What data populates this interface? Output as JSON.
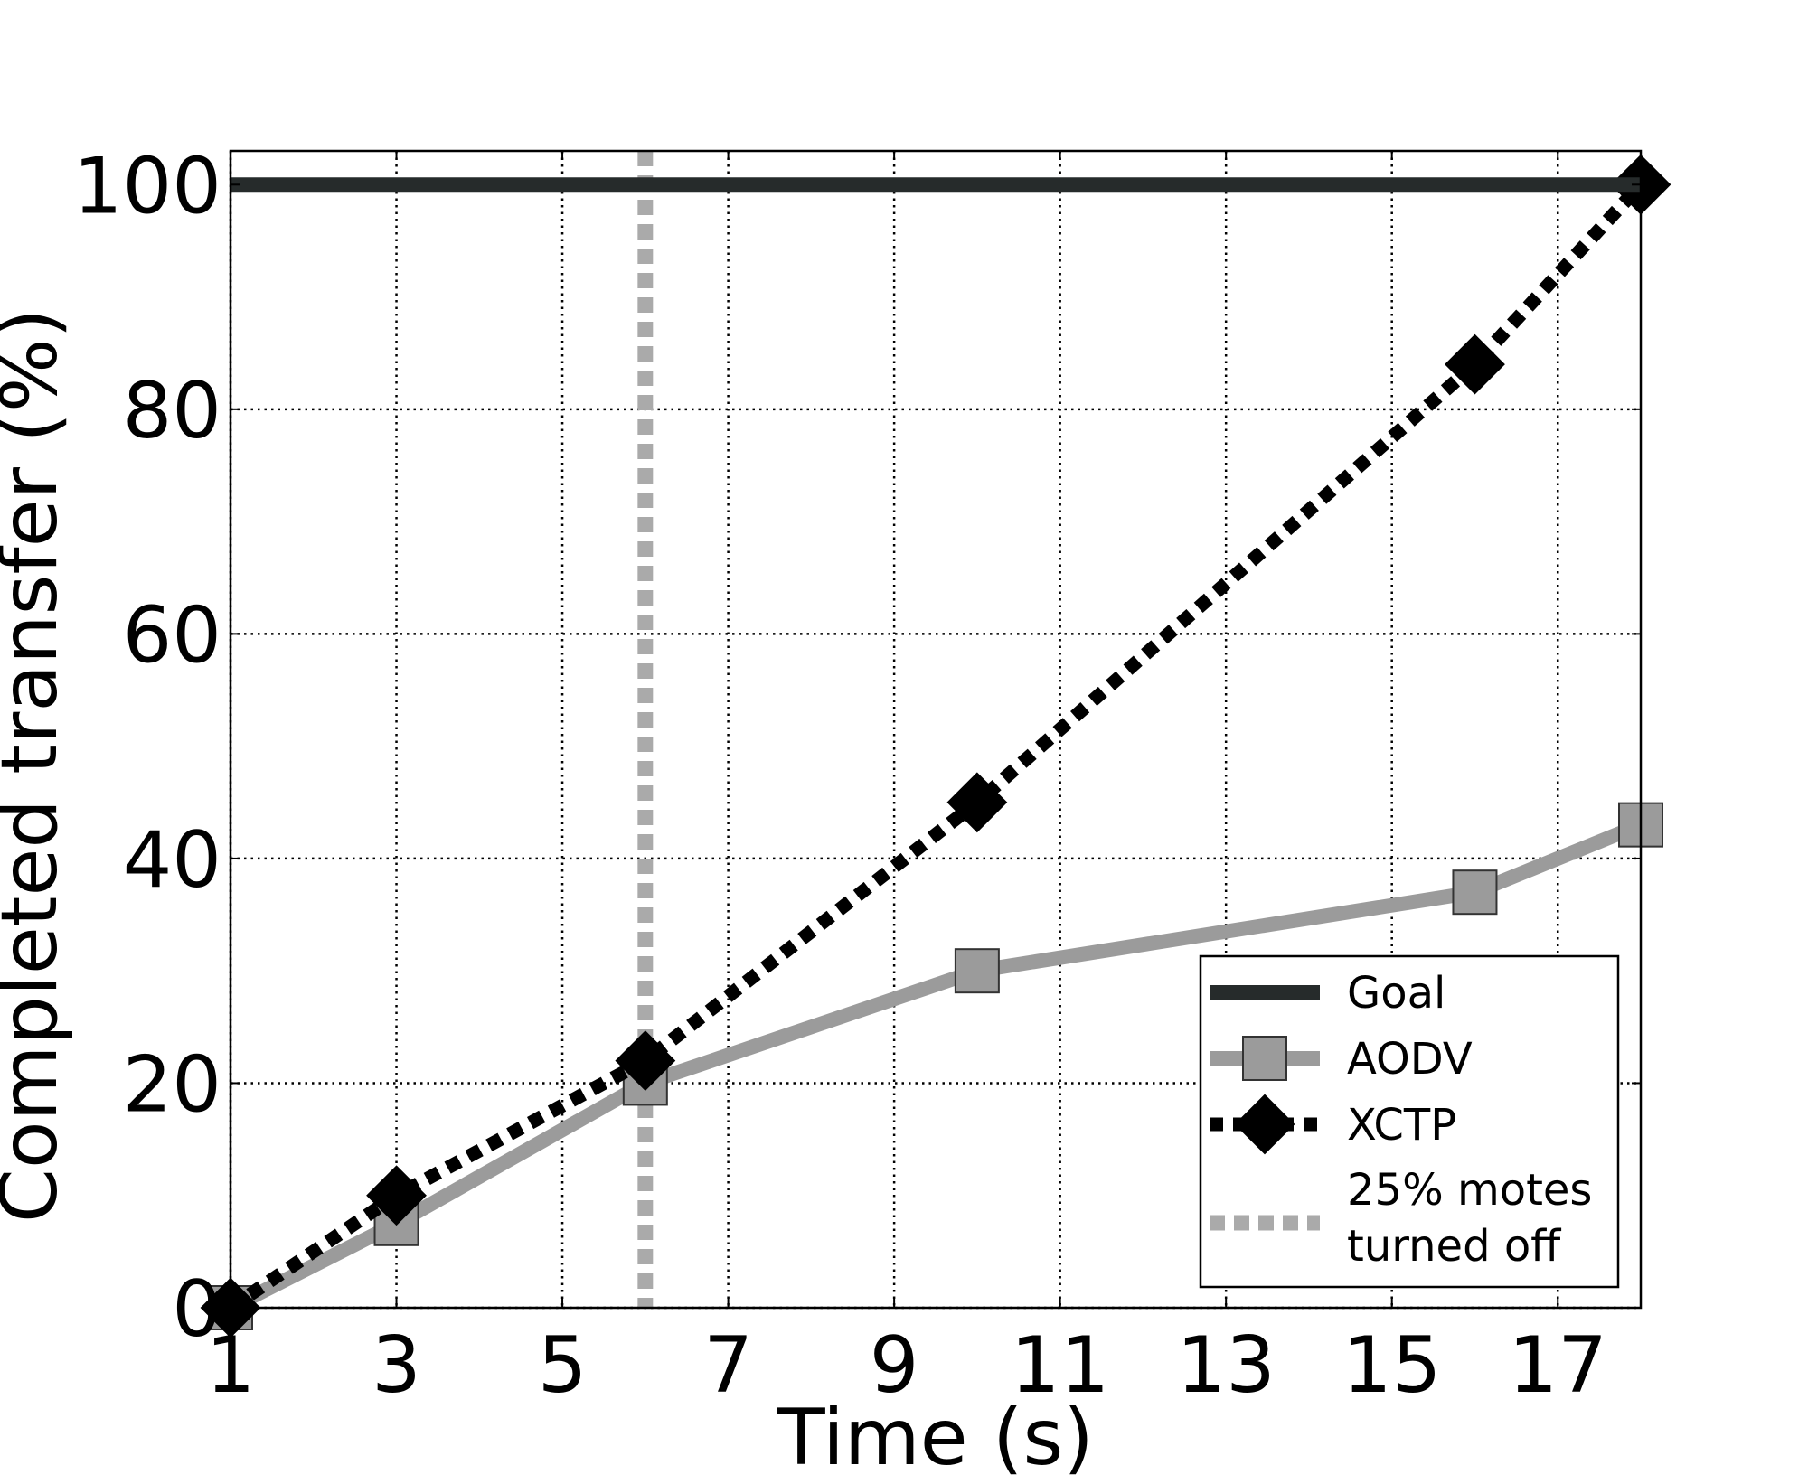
{
  "chart_data": {
    "type": "line",
    "xlabel": "Time (s)",
    "ylabel": "Completed transfer (%)",
    "xlim": [
      1,
      18
    ],
    "ylim": [
      0,
      103
    ],
    "xticks": [
      1,
      3,
      5,
      7,
      9,
      11,
      13,
      15,
      17
    ],
    "yticks": [
      0,
      20,
      40,
      60,
      80,
      100
    ],
    "grid": true,
    "legend_position": "lower-right",
    "series": [
      {
        "name": "Goal",
        "style": "solid",
        "marker": "none",
        "color": "#262b2b",
        "x": [
          1,
          18
        ],
        "y": [
          100,
          100
        ]
      },
      {
        "name": "AODV",
        "style": "solid",
        "marker": "square",
        "color": "#9b9b9b",
        "x": [
          1,
          3,
          6,
          10,
          16,
          18
        ],
        "y": [
          0,
          7.5,
          20,
          30,
          37,
          43
        ]
      },
      {
        "name": "XCTP",
        "style": "dotted",
        "marker": "diamond",
        "color": "#000000",
        "x": [
          1,
          3,
          6,
          10,
          16,
          18
        ],
        "y": [
          0,
          10,
          22,
          45,
          84,
          100
        ]
      }
    ],
    "vline": {
      "name_lines": [
        "25% motes",
        "turned off"
      ],
      "x": 6,
      "style": "dotted",
      "color": "#aaaaaa"
    }
  }
}
